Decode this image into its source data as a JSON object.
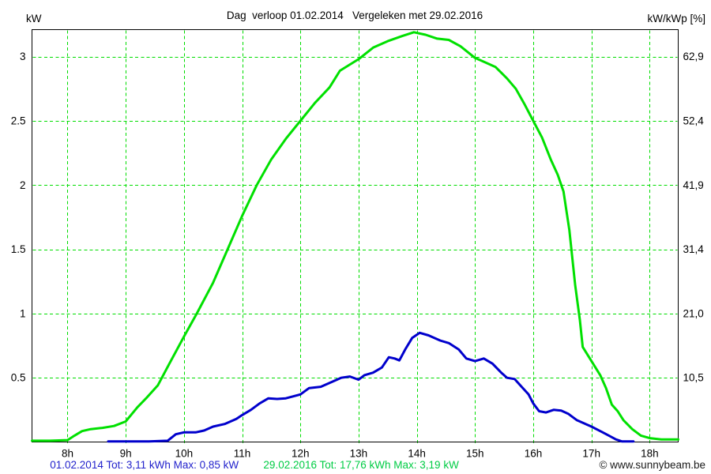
{
  "header": {
    "title": "Dag  verloop 01.02.2014   Vergeleken met 29.02.2016",
    "left_axis_unit": "kW",
    "right_axis_unit": "kW/kWp [%]"
  },
  "footer": {
    "series1_stats": "01.02.2014 Tot: 3,11 kWh Max: 0,85 kW",
    "series2_stats": "29.02.2016 Tot: 17,76 kWh Max: 3,19 kW",
    "copyright": "© www.sunnybeam.be"
  },
  "colors": {
    "background": "#ffffff",
    "grid": "#00dd00",
    "axis_border": "#000000",
    "text": "#000000",
    "series1_line": "#0000cc",
    "series2_line": "#00e000",
    "series1_text": "#2222cc",
    "series2_text": "#00cc44"
  },
  "chart_data": {
    "type": "line",
    "title": "Dag verloop 01.02.2014 Vergeleken met 29.02.2016",
    "xlabel": "",
    "ylabel_left": "kW",
    "ylabel_right": "kW/kWp [%]",
    "grid": true,
    "legend_position": "bottom-stats-line",
    "x_range_hours": [
      7.39,
      18.49
    ],
    "y_range_kw": [
      0,
      3.21
    ],
    "x_ticks": [
      {
        "hour": 8,
        "label": "8h"
      },
      {
        "hour": 9,
        "label": "9h"
      },
      {
        "hour": 10,
        "label": "10h"
      },
      {
        "hour": 11,
        "label": "11h"
      },
      {
        "hour": 12,
        "label": "12h"
      },
      {
        "hour": 13,
        "label": "13h"
      },
      {
        "hour": 14,
        "label": "14h"
      },
      {
        "hour": 15,
        "label": "15h"
      },
      {
        "hour": 16,
        "label": "16h"
      },
      {
        "hour": 17,
        "label": "17h"
      },
      {
        "hour": 18,
        "label": "18h"
      }
    ],
    "y_ticks": [
      {
        "kw": 0.5,
        "left_label": "0.5",
        "right_label": "10,5"
      },
      {
        "kw": 1.0,
        "left_label": "1",
        "right_label": "21,0"
      },
      {
        "kw": 1.5,
        "left_label": "1.5",
        "right_label": "31,4"
      },
      {
        "kw": 2.0,
        "left_label": "2",
        "right_label": "41,9"
      },
      {
        "kw": 2.5,
        "left_label": "2.5",
        "right_label": "52,4"
      },
      {
        "kw": 3.0,
        "left_label": "3",
        "right_label": "62,9"
      }
    ],
    "series": [
      {
        "name": "01.02.2014",
        "color_key": "series1_line",
        "total_kwh": "3,11",
        "max_kw": "0,85",
        "points_time_kw": [
          [
            8.7,
            0.005
          ],
          [
            9.4,
            0.005
          ],
          [
            9.72,
            0.01
          ],
          [
            9.86,
            0.06
          ],
          [
            10.0,
            0.075
          ],
          [
            10.2,
            0.075
          ],
          [
            10.35,
            0.09
          ],
          [
            10.5,
            0.12
          ],
          [
            10.7,
            0.14
          ],
          [
            10.9,
            0.18
          ],
          [
            11.0,
            0.21
          ],
          [
            11.15,
            0.25
          ],
          [
            11.3,
            0.3
          ],
          [
            11.45,
            0.34
          ],
          [
            11.6,
            0.335
          ],
          [
            11.75,
            0.34
          ],
          [
            12.0,
            0.37
          ],
          [
            12.15,
            0.42
          ],
          [
            12.35,
            0.43
          ],
          [
            12.55,
            0.47
          ],
          [
            12.7,
            0.5
          ],
          [
            12.85,
            0.51
          ],
          [
            13.0,
            0.485
          ],
          [
            13.1,
            0.52
          ],
          [
            13.25,
            0.54
          ],
          [
            13.4,
            0.58
          ],
          [
            13.52,
            0.66
          ],
          [
            13.62,
            0.65
          ],
          [
            13.7,
            0.635
          ],
          [
            13.8,
            0.72
          ],
          [
            13.92,
            0.81
          ],
          [
            14.05,
            0.85
          ],
          [
            14.2,
            0.83
          ],
          [
            14.4,
            0.79
          ],
          [
            14.55,
            0.77
          ],
          [
            14.72,
            0.72
          ],
          [
            14.85,
            0.65
          ],
          [
            15.0,
            0.63
          ],
          [
            15.15,
            0.65
          ],
          [
            15.3,
            0.61
          ],
          [
            15.45,
            0.54
          ],
          [
            15.55,
            0.5
          ],
          [
            15.68,
            0.49
          ],
          [
            15.8,
            0.43
          ],
          [
            15.92,
            0.37
          ],
          [
            16.0,
            0.3
          ],
          [
            16.1,
            0.24
          ],
          [
            16.22,
            0.23
          ],
          [
            16.35,
            0.25
          ],
          [
            16.48,
            0.245
          ],
          [
            16.6,
            0.22
          ],
          [
            16.75,
            0.17
          ],
          [
            16.9,
            0.14
          ],
          [
            17.0,
            0.12
          ],
          [
            17.15,
            0.085
          ],
          [
            17.3,
            0.05
          ],
          [
            17.42,
            0.02
          ],
          [
            17.52,
            0.005
          ],
          [
            17.72,
            0.005
          ]
        ]
      },
      {
        "name": "29.02.2016",
        "color_key": "series2_line",
        "total_kwh": "17,76",
        "max_kw": "3,19",
        "points_time_kw": [
          [
            7.39,
            0.01
          ],
          [
            7.7,
            0.01
          ],
          [
            8.0,
            0.015
          ],
          [
            8.12,
            0.05
          ],
          [
            8.25,
            0.085
          ],
          [
            8.4,
            0.1
          ],
          [
            8.6,
            0.11
          ],
          [
            8.8,
            0.125
          ],
          [
            9.0,
            0.16
          ],
          [
            9.2,
            0.27
          ],
          [
            9.35,
            0.34
          ],
          [
            9.55,
            0.44
          ],
          [
            9.75,
            0.61
          ],
          [
            10.0,
            0.82
          ],
          [
            10.22,
            1.0
          ],
          [
            10.5,
            1.24
          ],
          [
            10.75,
            1.5
          ],
          [
            11.0,
            1.76
          ],
          [
            11.25,
            2.0
          ],
          [
            11.5,
            2.2
          ],
          [
            11.75,
            2.36
          ],
          [
            12.0,
            2.5
          ],
          [
            12.25,
            2.64
          ],
          [
            12.5,
            2.76
          ],
          [
            12.68,
            2.89
          ],
          [
            13.0,
            2.98
          ],
          [
            13.25,
            3.07
          ],
          [
            13.5,
            3.12
          ],
          [
            13.75,
            3.16
          ],
          [
            13.95,
            3.19
          ],
          [
            14.15,
            3.17
          ],
          [
            14.35,
            3.14
          ],
          [
            14.55,
            3.13
          ],
          [
            14.75,
            3.08
          ],
          [
            15.0,
            2.99
          ],
          [
            15.2,
            2.95
          ],
          [
            15.35,
            2.92
          ],
          [
            15.55,
            2.83
          ],
          [
            15.7,
            2.75
          ],
          [
            15.85,
            2.63
          ],
          [
            16.0,
            2.5
          ],
          [
            16.15,
            2.37
          ],
          [
            16.3,
            2.2
          ],
          [
            16.42,
            2.08
          ],
          [
            16.52,
            1.95
          ],
          [
            16.62,
            1.65
          ],
          [
            16.72,
            1.22
          ],
          [
            16.8,
            0.95
          ],
          [
            16.85,
            0.74
          ],
          [
            17.0,
            0.63
          ],
          [
            17.15,
            0.52
          ],
          [
            17.25,
            0.42
          ],
          [
            17.35,
            0.29
          ],
          [
            17.45,
            0.24
          ],
          [
            17.55,
            0.17
          ],
          [
            17.7,
            0.1
          ],
          [
            17.85,
            0.05
          ],
          [
            18.0,
            0.03
          ],
          [
            18.2,
            0.02
          ],
          [
            18.49,
            0.02
          ]
        ]
      }
    ]
  }
}
